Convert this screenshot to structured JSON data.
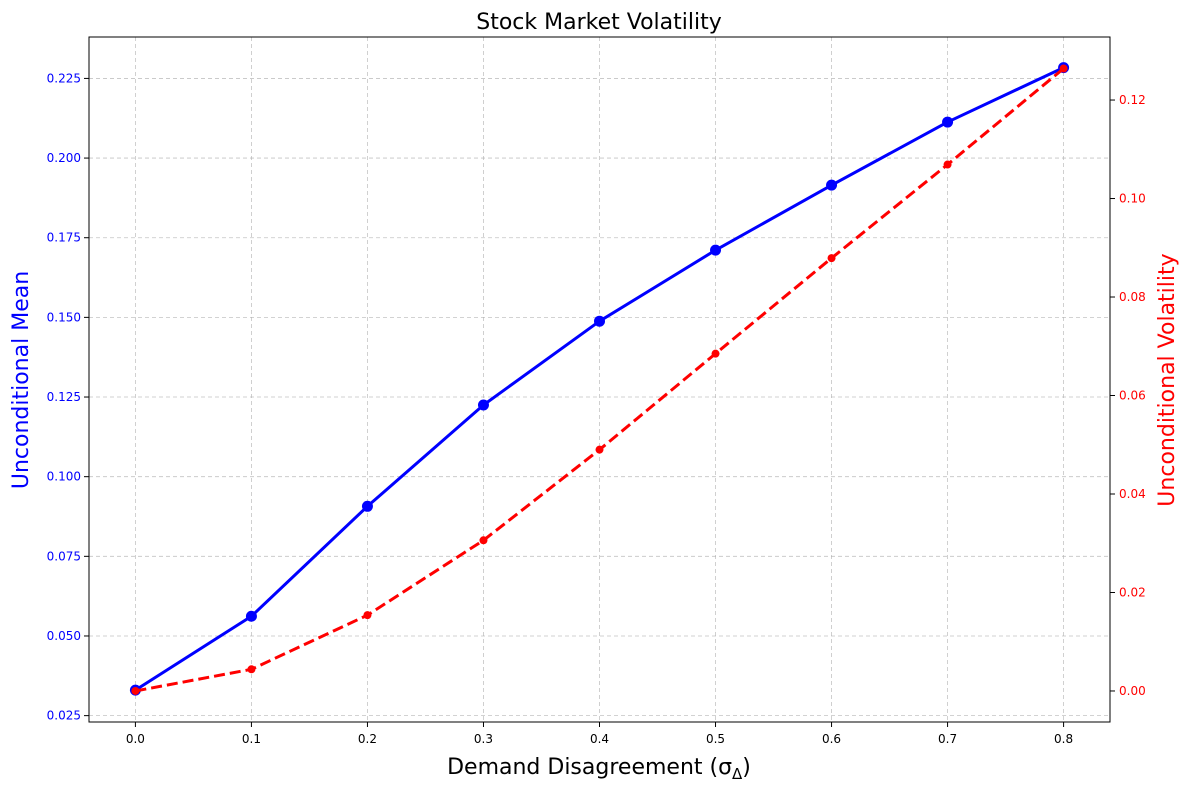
{
  "chart_data": {
    "type": "line",
    "title": "Stock Market Volatility",
    "xlabel": "Demand Disagreement (σ",
    "xlabel_subscript": "Δ",
    "xlabel_suffix": ")",
    "ylabel_left": "Unconditional Mean",
    "ylabel_right": "Unconditional Volatility",
    "x": [
      0.0,
      0.1,
      0.2,
      0.3,
      0.4,
      0.5,
      0.6,
      0.7,
      0.8
    ],
    "x_ticks": [
      "0.0",
      "0.1",
      "0.2",
      "0.3",
      "0.4",
      "0.5",
      "0.6",
      "0.7",
      "0.8"
    ],
    "x_tick_values": [
      0.0,
      0.1,
      0.2,
      0.3,
      0.4,
      0.5,
      0.6,
      0.7,
      0.8
    ],
    "xlim": [
      -0.04,
      0.84
    ],
    "ylim_left": [
      0.023,
      0.238
    ],
    "ylim_right": [
      -0.0063,
      0.1328
    ],
    "y_ticks_left": [
      "0.025",
      "0.050",
      "0.075",
      "0.100",
      "0.125",
      "0.150",
      "0.175",
      "0.200",
      "0.225"
    ],
    "y_tick_values_left": [
      0.025,
      0.05,
      0.075,
      0.1,
      0.125,
      0.15,
      0.175,
      0.2,
      0.225
    ],
    "y_ticks_right": [
      "0.00",
      "0.02",
      "0.04",
      "0.06",
      "0.08",
      "0.10",
      "0.12"
    ],
    "y_tick_values_right": [
      0.0,
      0.02,
      0.04,
      0.06,
      0.08,
      0.1,
      0.12
    ],
    "grid": true,
    "series": [
      {
        "axis": "left",
        "color": "#0000ff",
        "line_style": "solid",
        "marker": "circle",
        "values": [
          0.033,
          0.0562,
          0.0907,
          0.1225,
          0.1488,
          0.1711,
          0.1915,
          0.2113,
          0.2284
        ]
      },
      {
        "axis": "right",
        "color": "#ff0000",
        "line_style": "dashed",
        "marker": "circle",
        "values": [
          0.0,
          0.0044,
          0.0154,
          0.0306,
          0.049,
          0.0685,
          0.0879,
          0.1069,
          0.1264
        ]
      }
    ]
  }
}
